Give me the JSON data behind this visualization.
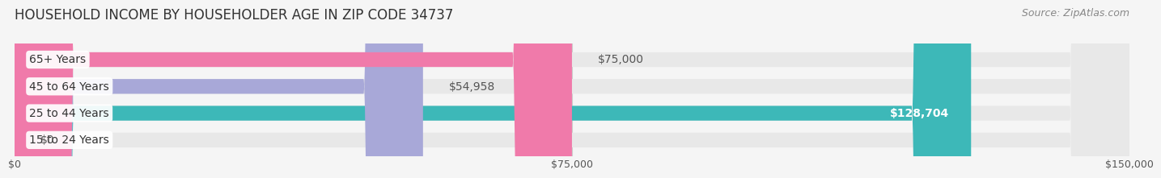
{
  "title": "HOUSEHOLD INCOME BY HOUSEHOLDER AGE IN ZIP CODE 34737",
  "source": "Source: ZipAtlas.com",
  "categories": [
    "15 to 24 Years",
    "25 to 44 Years",
    "45 to 64 Years",
    "65+ Years"
  ],
  "values": [
    0,
    128704,
    54958,
    75000
  ],
  "bar_colors": [
    "#c9a8c8",
    "#3db8b8",
    "#a8a8d8",
    "#f07aaa"
  ],
  "bar_bg_color": "#e8e8e8",
  "value_labels": [
    "$0",
    "$128,704",
    "$54,958",
    "$75,000"
  ],
  "xlim": [
    0,
    150000
  ],
  "xticks": [
    0,
    75000,
    150000
  ],
  "xtick_labels": [
    "$0",
    "$75,000",
    "$150,000"
  ],
  "background_color": "#f5f5f5",
  "bar_height": 0.55,
  "title_fontsize": 12,
  "label_fontsize": 10,
  "tick_fontsize": 9,
  "source_fontsize": 9
}
